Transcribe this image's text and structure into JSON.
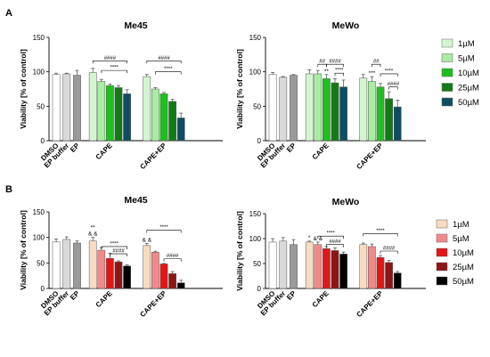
{
  "figure": {
    "panel_labels": [
      "A",
      "B"
    ]
  },
  "legends": [
    {
      "name": "A",
      "entries": [
        {
          "label": "1µM",
          "color": "#d5f5d2"
        },
        {
          "label": "5µM",
          "color": "#a8eda3"
        },
        {
          "label": "10µM",
          "color": "#1fbf1f"
        },
        {
          "label": "25µM",
          "color": "#137a16"
        },
        {
          "label": "50µM",
          "color": "#0e4d62"
        }
      ]
    },
    {
      "name": "B",
      "entries": [
        {
          "label": "1µM",
          "color": "#f8dcc1"
        },
        {
          "label": "5µM",
          "color": "#f08a8a"
        },
        {
          "label": "10µM",
          "color": "#e31616"
        },
        {
          "label": "25µM",
          "color": "#8e1515"
        },
        {
          "label": "50µM",
          "color": "#000000"
        }
      ]
    }
  ],
  "chart_data": [
    {
      "type": "bar",
      "panel": "A",
      "title": "Me45",
      "ylabel": "Viability [% of control]",
      "ylim": [
        0,
        150
      ],
      "yticks": [
        0,
        50,
        100,
        150
      ],
      "control_colors": [
        "#ffffff",
        "#d9d9d9",
        "#9a9a9a"
      ],
      "controls": [
        {
          "label": "DMSO",
          "value": 96,
          "err": 2
        },
        {
          "label": "EP buffer",
          "value": 97,
          "err": 1
        },
        {
          "label": "EP",
          "value": 95,
          "err": 7
        }
      ],
      "groups": [
        {
          "label": "CAPE",
          "values": [
            99,
            86,
            80,
            77,
            68
          ],
          "err": [
            6,
            3,
            2,
            3,
            6
          ],
          "marks": []
        },
        {
          "label": "CAPE+EP",
          "values": [
            93,
            75,
            68,
            57,
            33
          ],
          "err": [
            3,
            2,
            2,
            3,
            7
          ],
          "marks": []
        }
      ],
      "brackets": [
        {
          "group": 0,
          "from": 0,
          "to": 4,
          "y": 116,
          "label": "####"
        },
        {
          "group": 0,
          "from": 1,
          "to": 4,
          "y": 102,
          "label": "****"
        },
        {
          "group": 1,
          "from": 0,
          "to": 4,
          "y": 116,
          "label": "####"
        },
        {
          "group": 1,
          "from": 1,
          "to": 4,
          "y": 100,
          "label": "****"
        }
      ]
    },
    {
      "type": "bar",
      "panel": "A",
      "title": "MeWo",
      "ylabel": "Viability [% of control]",
      "ylim": [
        0,
        150
      ],
      "yticks": [
        0,
        50,
        100,
        150
      ],
      "control_colors": [
        "#ffffff",
        "#d9d9d9",
        "#9a9a9a"
      ],
      "controls": [
        {
          "label": "DMSO",
          "value": 96,
          "err": 3
        },
        {
          "label": "EP buffer",
          "value": 92,
          "err": 1
        },
        {
          "label": "EP",
          "value": 95,
          "err": 1
        }
      ],
      "groups": [
        {
          "label": "CAPE",
          "values": [
            97,
            97,
            90,
            84,
            78
          ],
          "err": [
            6,
            5,
            6,
            6,
            10
          ],
          "marks": [
            {
              "bar": 2,
              "label": "**"
            }
          ]
        },
        {
          "label": "CAPE+EP",
          "values": [
            91,
            86,
            78,
            61,
            49
          ],
          "err": [
            5,
            7,
            5,
            10,
            10
          ],
          "marks": [
            {
              "bar": 1,
              "label": "***"
            }
          ]
        }
      ],
      "brackets": [
        {
          "group": 0,
          "from": 1,
          "to": 2,
          "y": 111,
          "label": "##"
        },
        {
          "group": 0,
          "from": 2,
          "to": 4,
          "y": 111,
          "label": "####"
        },
        {
          "group": 0,
          "from": 3,
          "to": 4,
          "y": 98,
          "label": "****"
        },
        {
          "group": 1,
          "from": 1,
          "to": 2,
          "y": 111,
          "label": "##"
        },
        {
          "group": 1,
          "from": 2,
          "to": 4,
          "y": 97,
          "label": "****"
        },
        {
          "group": 1,
          "from": 3,
          "to": 4,
          "y": 78,
          "label": "####"
        }
      ]
    },
    {
      "type": "bar",
      "panel": "B",
      "title": "Me45",
      "ylabel": "Viability [% of control]",
      "ylim": [
        0,
        150
      ],
      "yticks": [
        0,
        50,
        100,
        150
      ],
      "control_colors": [
        "#ffffff",
        "#d9d9d9",
        "#9a9a9a"
      ],
      "controls": [
        {
          "label": "DMSO",
          "value": 91,
          "err": 6
        },
        {
          "label": "EP buffer",
          "value": 96,
          "err": 5
        },
        {
          "label": "EP",
          "value": 89,
          "err": 4
        }
      ],
      "groups": [
        {
          "label": "CAPE",
          "values": [
            93,
            75,
            59,
            52,
            44
          ],
          "err": [
            7,
            5,
            10,
            2,
            2
          ],
          "marks": [
            {
              "bar": 0,
              "label": "& &"
            },
            {
              "bar": 0,
              "label": "**"
            }
          ]
        },
        {
          "label": "CAPE+EP",
          "values": [
            84,
            71,
            48,
            29,
            11
          ],
          "err": [
            4,
            2,
            1,
            4,
            5
          ],
          "marks": [
            {
              "bar": 0,
              "label": "& &"
            }
          ]
        }
      ],
      "brackets": [
        {
          "group": 0,
          "from": 1,
          "to": 4,
          "y": 82,
          "label": "****"
        },
        {
          "group": 0,
          "from": 2,
          "to": 4,
          "y": 68,
          "label": "####"
        },
        {
          "group": 1,
          "from": 0,
          "to": 4,
          "y": 114,
          "label": "****"
        },
        {
          "group": 1,
          "from": 2,
          "to": 4,
          "y": 58,
          "label": "####"
        }
      ]
    },
    {
      "type": "bar",
      "panel": "B",
      "title": "MeWo",
      "ylabel": "Viability [% of control]",
      "ylim": [
        0,
        150
      ],
      "yticks": [
        0,
        50,
        100,
        150
      ],
      "control_colors": [
        "#ffffff",
        "#d9d9d9",
        "#9a9a9a"
      ],
      "controls": [
        {
          "label": "DMSO",
          "value": 93,
          "err": 7
        },
        {
          "label": "EP buffer",
          "value": 95,
          "err": 7
        },
        {
          "label": "EP",
          "value": 88,
          "err": 10
        }
      ],
      "groups": [
        {
          "label": "CAPE",
          "values": [
            93,
            88,
            80,
            76,
            69
          ],
          "err": [
            2,
            5,
            4,
            5,
            4
          ],
          "marks": [
            {
              "bar": 0,
              "label": "*"
            },
            {
              "bar": 1,
              "label": "& &"
            }
          ]
        },
        {
          "label": "CAPE+EP",
          "values": [
            88,
            84,
            62,
            52,
            31
          ],
          "err": [
            3,
            5,
            4,
            4,
            3
          ],
          "marks": []
        }
      ],
      "brackets": [
        {
          "group": 0,
          "from": 1,
          "to": 4,
          "y": 105,
          "label": "****"
        },
        {
          "group": 0,
          "from": 2,
          "to": 4,
          "y": 88,
          "label": "####"
        },
        {
          "group": 1,
          "from": 0,
          "to": 4,
          "y": 110,
          "label": "****"
        },
        {
          "group": 1,
          "from": 2,
          "to": 4,
          "y": 75,
          "label": "####"
        }
      ]
    }
  ]
}
